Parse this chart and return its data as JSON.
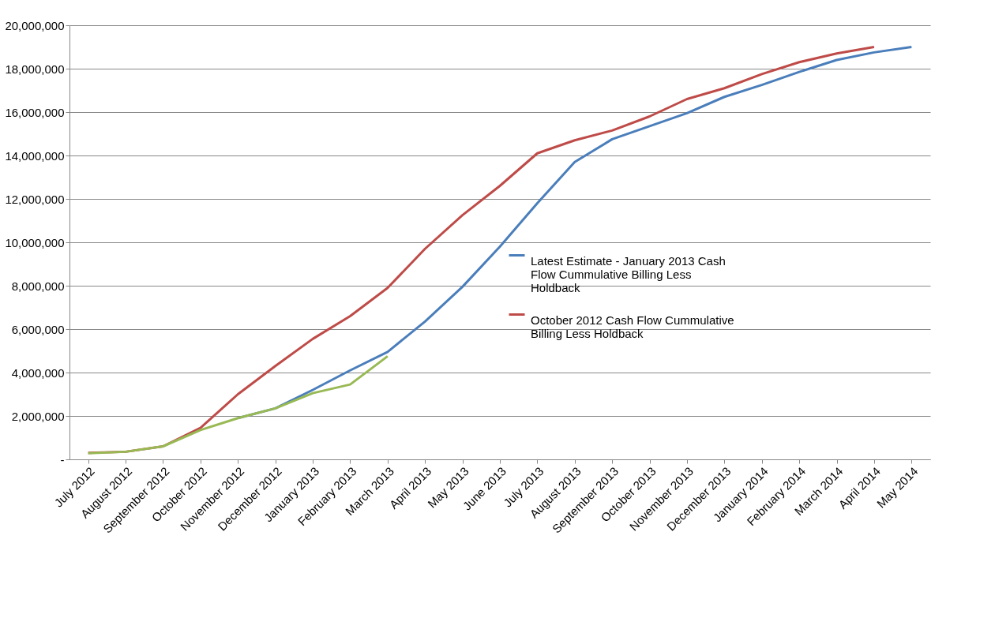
{
  "chart_data": {
    "type": "line",
    "categories": [
      "July 2012",
      "August 2012",
      "September 2012",
      "October 2012",
      "November 2012",
      "December 2012",
      "January 2013",
      "February 2013",
      "March 2013",
      "April 2013",
      "May 2013",
      "June 2013",
      "July 2013",
      "August 2013",
      "September 2013",
      "October 2013",
      "November 2013",
      "December 2013",
      "January 2014",
      "February 2014",
      "March 2014",
      "April 2014",
      "May 2014"
    ],
    "series": [
      {
        "name": "Latest Estimate - January 2013 Cash Flow Cummulative Billing Less Holdback",
        "color": "#4a7ebb",
        "values": [
          null,
          null,
          null,
          null,
          1900000,
          2350000,
          3200000,
          4100000,
          4950000,
          6350000,
          7950000,
          9800000,
          11800000,
          13700000,
          14750000,
          15350000,
          15950000,
          16700000,
          17250000,
          17850000,
          18400000,
          18750000,
          19000000
        ]
      },
      {
        "name": "October 2012 Cash Flow Cummulative Billing Less Holdback",
        "color": "#be4b48",
        "values": [
          300000,
          350000,
          600000,
          1450000,
          3000000,
          4300000,
          5550000,
          6600000,
          7900000,
          9700000,
          11250000,
          12600000,
          14100000,
          14700000,
          15150000,
          15800000,
          16600000,
          17100000,
          17750000,
          18300000,
          18700000,
          19000000,
          null
        ]
      },
      {
        "color": "#98b954",
        "values": [
          280000,
          350000,
          600000,
          1350000,
          1900000,
          2350000,
          3050000,
          3450000,
          4750000,
          null,
          null,
          null,
          null,
          null,
          null,
          null,
          null,
          null,
          null,
          null,
          null,
          null,
          null
        ]
      }
    ],
    "ylim": [
      0,
      20000000
    ],
    "yticks": [
      {
        "value": 0,
        "label": "-"
      },
      {
        "value": 2000000,
        "label": "2,000,000"
      },
      {
        "value": 4000000,
        "label": "4,000,000"
      },
      {
        "value": 6000000,
        "label": "6,000,000"
      },
      {
        "value": 8000000,
        "label": "8,000,000"
      },
      {
        "value": 10000000,
        "label": "10,000,000"
      },
      {
        "value": 12000000,
        "label": "12,000,000"
      },
      {
        "value": 14000000,
        "label": "14,000,000"
      },
      {
        "value": 16000000,
        "label": "16,000,000"
      },
      {
        "value": 18000000,
        "label": "18,000,000"
      },
      {
        "value": 20000000,
        "label": "20,000,000"
      }
    ],
    "grid": "y",
    "legend": "right",
    "marker": "none",
    "line_style": "solid"
  }
}
